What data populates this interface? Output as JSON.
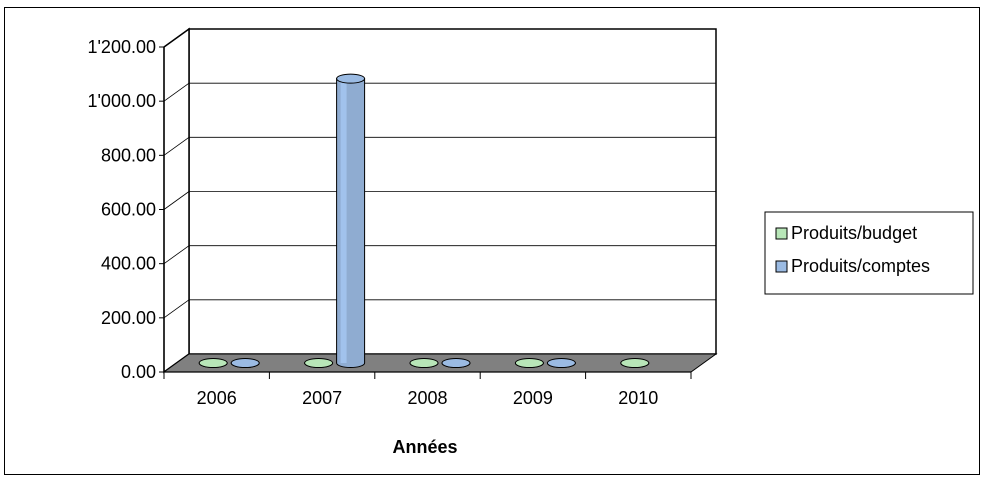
{
  "chart_data": {
    "type": "bar",
    "bar_shape": "cylinder",
    "three_d": true,
    "categories": [
      "2006",
      "2007",
      "2008",
      "2009",
      "2010"
    ],
    "series": [
      {
        "name": "Produits/budget",
        "values": [
          0,
          0,
          0,
          0,
          0
        ],
        "color": "#b8e6b8"
      },
      {
        "name": "Produits/comptes",
        "values": [
          0,
          1050,
          0,
          0,
          null
        ],
        "color": "#9bbbe3"
      }
    ],
    "xlabel": "Années",
    "ylabel": "",
    "ylim": [
      0,
      1200
    ],
    "yticks": [
      0,
      200,
      400,
      600,
      800,
      1000,
      1200
    ],
    "ytick_labels": [
      "0.00",
      "200.00",
      "400.00",
      "600.00",
      "800.00",
      "1'000.00",
      "1'200.00"
    ],
    "grid": true,
    "legend_position": "right",
    "colors": {
      "floor": "#808080",
      "wall": "#ffffff",
      "grid": "#000000"
    }
  }
}
